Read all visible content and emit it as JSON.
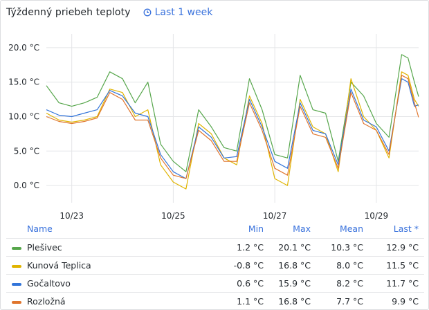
{
  "panel": {
    "title": "Týždenný priebeh teploty",
    "time_range": "Last 1 week"
  },
  "legend": {
    "headers": {
      "name": "Name",
      "min": "Min",
      "max": "Max",
      "mean": "Mean",
      "last": "Last *"
    },
    "rows": [
      {
        "name": "Plešivec",
        "color": "#56a64b",
        "min": "1.2 °C",
        "max": "20.1 °C",
        "mean": "10.3 °C",
        "last": "12.9 °C"
      },
      {
        "name": "Kunová Teplica",
        "color": "#e0b400",
        "min": "-0.8 °C",
        "max": "16.8 °C",
        "mean": "8.0 °C",
        "last": "11.5 °C"
      },
      {
        "name": "Gočaltovo",
        "color": "#3274d9",
        "min": "0.6 °C",
        "max": "15.9 °C",
        "mean": "8.2 °C",
        "last": "11.7 °C"
      },
      {
        "name": "Rozložná",
        "color": "#e0752d",
        "min": "1.1 °C",
        "max": "16.8 °C",
        "mean": "7.7 °C",
        "last": "9.9 °C"
      }
    ]
  },
  "chart_data": {
    "type": "line",
    "y_ticks": [
      0,
      5,
      10,
      15,
      20
    ],
    "y_tick_labels": [
      "0.0 °C",
      "5.0 °C",
      "10.0 °C",
      "15.0 °C",
      "20.0 °C"
    ],
    "ylim": [
      -2.5,
      22.0
    ],
    "xlim": [
      "10/22 12:00",
      "10/29 20:00"
    ],
    "x_tick_labels": [
      "10/23",
      "10/25",
      "10/27",
      "10/29"
    ],
    "x_ticks": [
      "10/23 00:00",
      "10/25 00:00",
      "10/27 00:00",
      "10/29 00:00"
    ],
    "grid": true,
    "x": [
      "10/22 12:00",
      "10/22 18:00",
      "10/23 00:00",
      "10/23 06:00",
      "10/23 12:00",
      "10/23 18:00",
      "10/24 00:00",
      "10/24 06:00",
      "10/24 12:00",
      "10/24 18:00",
      "10/25 00:00",
      "10/25 06:00",
      "10/25 12:00",
      "10/25 18:00",
      "10/26 00:00",
      "10/26 06:00",
      "10/26 12:00",
      "10/26 18:00",
      "10/27 00:00",
      "10/27 06:00",
      "10/27 12:00",
      "10/27 18:00",
      "10/28 00:00",
      "10/28 06:00",
      "10/28 12:00",
      "10/28 18:00",
      "10/29 00:00",
      "10/29 06:00",
      "10/29 12:00",
      "10/29 15:00",
      "10/29 18:00",
      "10/29 20:00"
    ],
    "series": [
      {
        "name": "Plešivec",
        "color": "#56a64b",
        "values": [
          14.5,
          12.0,
          11.5,
          12.0,
          12.8,
          16.5,
          15.5,
          12.0,
          15.0,
          6.0,
          3.5,
          2.0,
          11.0,
          8.5,
          5.5,
          5.0,
          15.5,
          11.0,
          4.5,
          4.0,
          16.0,
          11.0,
          10.5,
          3.5,
          15.0,
          13.0,
          9.0,
          7.0,
          19.0,
          18.5,
          15.0,
          12.9
        ]
      },
      {
        "name": "Kunová Teplica",
        "color": "#e0b400",
        "values": [
          10.5,
          9.5,
          9.2,
          9.5,
          10.0,
          14.0,
          13.5,
          10.0,
          11.0,
          3.0,
          0.5,
          -0.5,
          9.0,
          7.5,
          4.0,
          3.0,
          13.0,
          9.0,
          1.0,
          0.0,
          12.5,
          8.5,
          7.5,
          2.0,
          15.5,
          10.0,
          8.0,
          4.0,
          16.5,
          16.0,
          12.5,
          11.5
        ]
      },
      {
        "name": "Gočaltovo",
        "color": "#3274d9",
        "values": [
          11.0,
          10.2,
          10.0,
          10.5,
          11.0,
          13.8,
          13.0,
          10.5,
          10.0,
          4.5,
          2.0,
          1.0,
          8.5,
          7.0,
          4.0,
          4.2,
          12.5,
          8.5,
          3.5,
          2.5,
          12.0,
          8.0,
          7.5,
          3.0,
          14.0,
          9.5,
          8.5,
          5.0,
          15.5,
          15.0,
          11.5,
          11.7
        ]
      },
      {
        "name": "Rozložná",
        "color": "#e0752d",
        "values": [
          10.0,
          9.3,
          9.0,
          9.3,
          9.8,
          13.5,
          12.5,
          9.5,
          9.5,
          4.0,
          1.5,
          1.0,
          8.0,
          6.5,
          3.5,
          3.5,
          12.0,
          8.0,
          2.5,
          1.5,
          11.5,
          7.5,
          7.0,
          2.5,
          13.5,
          9.0,
          8.0,
          4.5,
          16.0,
          15.5,
          12.0,
          9.9
        ]
      }
    ]
  }
}
